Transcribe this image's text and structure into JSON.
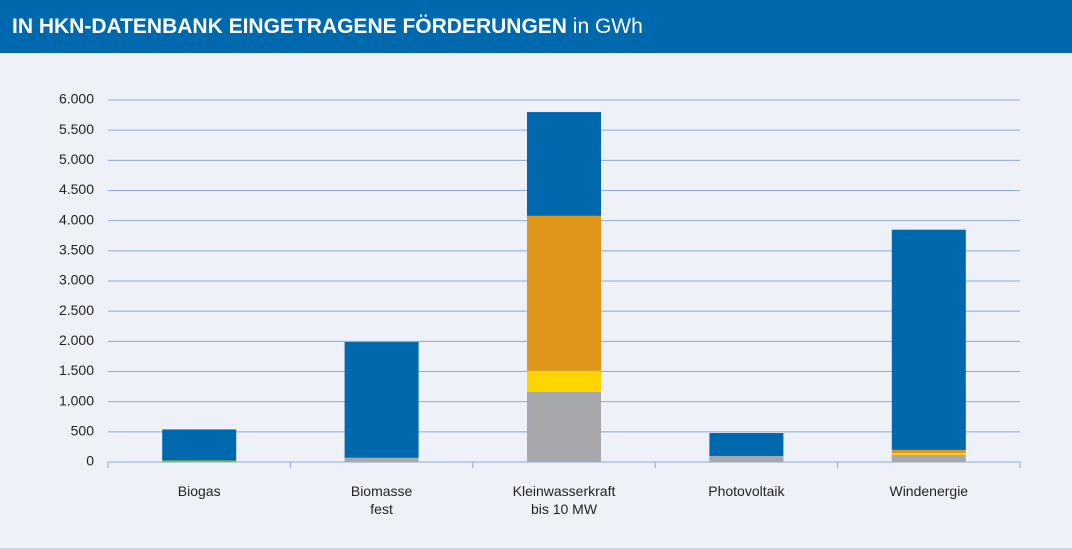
{
  "chart_data": {
    "type": "stacked_bar",
    "title": "IN HKN-DATENBANK EINGETRAGENE FÖRDERUNGEN",
    "unit": "in GWh",
    "categories": [
      "Biogas",
      "Biomasse\nfest",
      "Kleinwasserkraft\nbis 10 MW",
      "Photovoltaik",
      "Windenergie"
    ],
    "series": [
      {
        "color": "#a6a8ab",
        "values": [
          10,
          70,
          1160,
          100,
          120
        ]
      },
      {
        "color": "#ffd500",
        "values": [
          0,
          0,
          350,
          0,
          30
        ]
      },
      {
        "color": "#e0961a",
        "values": [
          0,
          0,
          2570,
          0,
          50
        ]
      },
      {
        "color": "#5aa02c",
        "values": [
          20,
          0,
          0,
          0,
          0
        ]
      },
      {
        "color": "#0068ad",
        "values": [
          510,
          1920,
          1720,
          380,
          3650
        ]
      }
    ],
    "ylim": [
      0,
      6000
    ],
    "yticks": [
      0,
      500,
      {
        "value": 1000,
        "label": "1.000"
      },
      {
        "value": 1500,
        "label": "1.500"
      },
      {
        "value": 2000,
        "label": "2.000"
      },
      {
        "value": 2500,
        "label": "2.500"
      },
      {
        "value": 3000,
        "label": "3.000"
      },
      {
        "value": 3500,
        "label": "3.500"
      },
      {
        "value": 4000,
        "label": "4.000"
      },
      {
        "value": 4500,
        "label": "4.500"
      },
      {
        "value": 5000,
        "label": "5.000"
      },
      {
        "value": 5500,
        "label": "5.500"
      },
      {
        "value": 6000,
        "label": "6.000"
      }
    ],
    "grid": true
  }
}
